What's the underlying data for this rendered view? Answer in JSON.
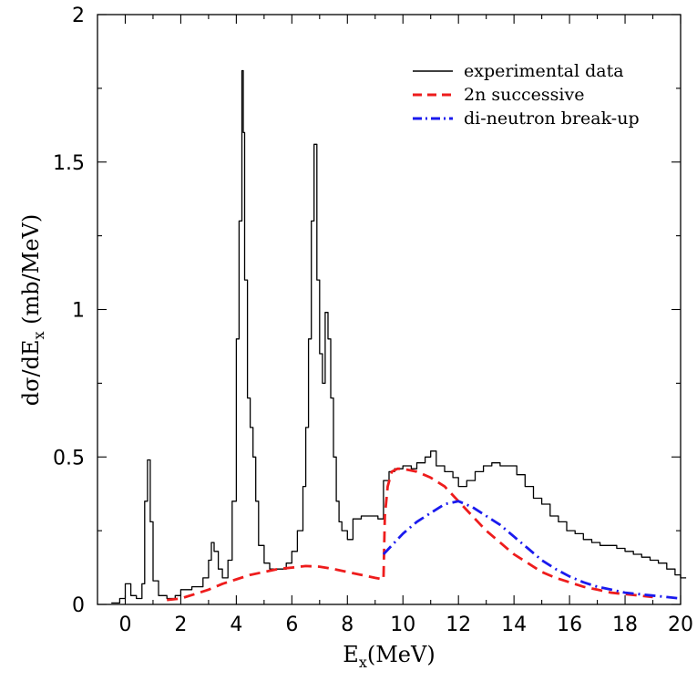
{
  "chart_data": {
    "type": "line",
    "title": "",
    "xlabel": {
      "main": "E",
      "sub": "x",
      "rest": "(MeV)"
    },
    "ylabel": {
      "pre": "dσ/dE",
      "sub": "x",
      "rest": " (mb/MeV)"
    },
    "xlim": [
      -1,
      20
    ],
    "ylim": [
      0,
      2
    ],
    "x_ticks": [
      0,
      2,
      4,
      6,
      8,
      10,
      12,
      14,
      16,
      18,
      20
    ],
    "y_ticks": [
      0,
      0.5,
      1,
      1.5,
      2
    ],
    "y_tick_labels": [
      "0",
      "0.5",
      "1",
      "1.5",
      "2"
    ],
    "grid": false,
    "legend_position": "top-right",
    "series": [
      {
        "name": "experimental data",
        "style": "step",
        "color": "#000000",
        "x": [
          -0.5,
          -0.2,
          0.0,
          0.2,
          0.4,
          0.6,
          0.7,
          0.8,
          0.9,
          1.0,
          1.2,
          1.5,
          1.8,
          2.0,
          2.4,
          2.8,
          3.0,
          3.1,
          3.2,
          3.35,
          3.5,
          3.7,
          3.85,
          4.0,
          4.1,
          4.2,
          4.25,
          4.3,
          4.4,
          4.5,
          4.6,
          4.7,
          4.8,
          5.0,
          5.2,
          5.5,
          5.8,
          6.0,
          6.2,
          6.4,
          6.5,
          6.6,
          6.7,
          6.8,
          6.9,
          7.0,
          7.1,
          7.2,
          7.3,
          7.4,
          7.5,
          7.6,
          7.7,
          7.8,
          8.0,
          8.2,
          8.5,
          8.8,
          9.1,
          9.3,
          9.5,
          9.7,
          10.0,
          10.3,
          10.5,
          10.8,
          11.0,
          11.2,
          11.5,
          11.8,
          12.0,
          12.3,
          12.6,
          12.9,
          13.2,
          13.5,
          13.8,
          14.1,
          14.4,
          14.7,
          15.0,
          15.3,
          15.6,
          15.9,
          16.2,
          16.5,
          16.8,
          17.1,
          17.4,
          17.7,
          18.0,
          18.3,
          18.6,
          18.9,
          19.2,
          19.5,
          19.8,
          20.0
        ],
        "y": [
          0.005,
          0.02,
          0.07,
          0.03,
          0.02,
          0.07,
          0.35,
          0.49,
          0.28,
          0.08,
          0.03,
          0.02,
          0.03,
          0.05,
          0.06,
          0.09,
          0.15,
          0.21,
          0.18,
          0.12,
          0.09,
          0.15,
          0.35,
          0.9,
          1.3,
          1.81,
          1.6,
          1.1,
          0.7,
          0.6,
          0.5,
          0.35,
          0.2,
          0.14,
          0.12,
          0.12,
          0.14,
          0.18,
          0.25,
          0.4,
          0.6,
          0.9,
          1.3,
          1.56,
          1.1,
          0.85,
          0.75,
          0.99,
          0.9,
          0.7,
          0.5,
          0.35,
          0.28,
          0.25,
          0.22,
          0.29,
          0.3,
          0.3,
          0.29,
          0.42,
          0.45,
          0.46,
          0.47,
          0.46,
          0.48,
          0.5,
          0.52,
          0.47,
          0.45,
          0.43,
          0.4,
          0.42,
          0.45,
          0.47,
          0.48,
          0.47,
          0.47,
          0.44,
          0.4,
          0.36,
          0.34,
          0.3,
          0.28,
          0.25,
          0.24,
          0.22,
          0.21,
          0.2,
          0.2,
          0.19,
          0.18,
          0.17,
          0.16,
          0.15,
          0.14,
          0.12,
          0.1,
          0.09
        ]
      },
      {
        "name": "2n successive",
        "style": "dashed",
        "color": "#ee1c1c",
        "x": [
          1.5,
          2,
          2.5,
          3,
          3.5,
          4,
          4.5,
          5,
          5.5,
          6,
          6.5,
          7,
          7.5,
          8,
          8.5,
          9,
          9.3,
          9.35,
          9.45,
          9.6,
          9.8,
          10,
          10.5,
          11,
          11.5,
          12,
          12.5,
          13,
          13.5,
          14,
          14.5,
          15,
          15.5,
          16,
          16.5,
          17,
          17.5,
          18,
          18.5,
          19
        ],
        "y": [
          0.015,
          0.02,
          0.035,
          0.05,
          0.07,
          0.085,
          0.1,
          0.11,
          0.12,
          0.125,
          0.13,
          0.128,
          0.12,
          0.11,
          0.1,
          0.09,
          0.085,
          0.3,
          0.4,
          0.45,
          0.46,
          0.46,
          0.45,
          0.43,
          0.4,
          0.35,
          0.3,
          0.25,
          0.21,
          0.17,
          0.14,
          0.11,
          0.09,
          0.075,
          0.06,
          0.05,
          0.04,
          0.035,
          0.03,
          0.025
        ]
      },
      {
        "name": "di-neutron break-up",
        "style": "dashdot",
        "color": "#1a1aee",
        "x": [
          9.3,
          9.6,
          10,
          10.5,
          11,
          11.5,
          12,
          12.5,
          13,
          13.5,
          14,
          14.5,
          15,
          15.5,
          16,
          16.5,
          17,
          17.5,
          18,
          18.5,
          19,
          19.5,
          20
        ],
        "y": [
          0.17,
          0.2,
          0.24,
          0.28,
          0.31,
          0.34,
          0.35,
          0.33,
          0.3,
          0.27,
          0.23,
          0.19,
          0.15,
          0.12,
          0.095,
          0.075,
          0.06,
          0.05,
          0.04,
          0.035,
          0.03,
          0.025,
          0.02
        ]
      }
    ]
  }
}
